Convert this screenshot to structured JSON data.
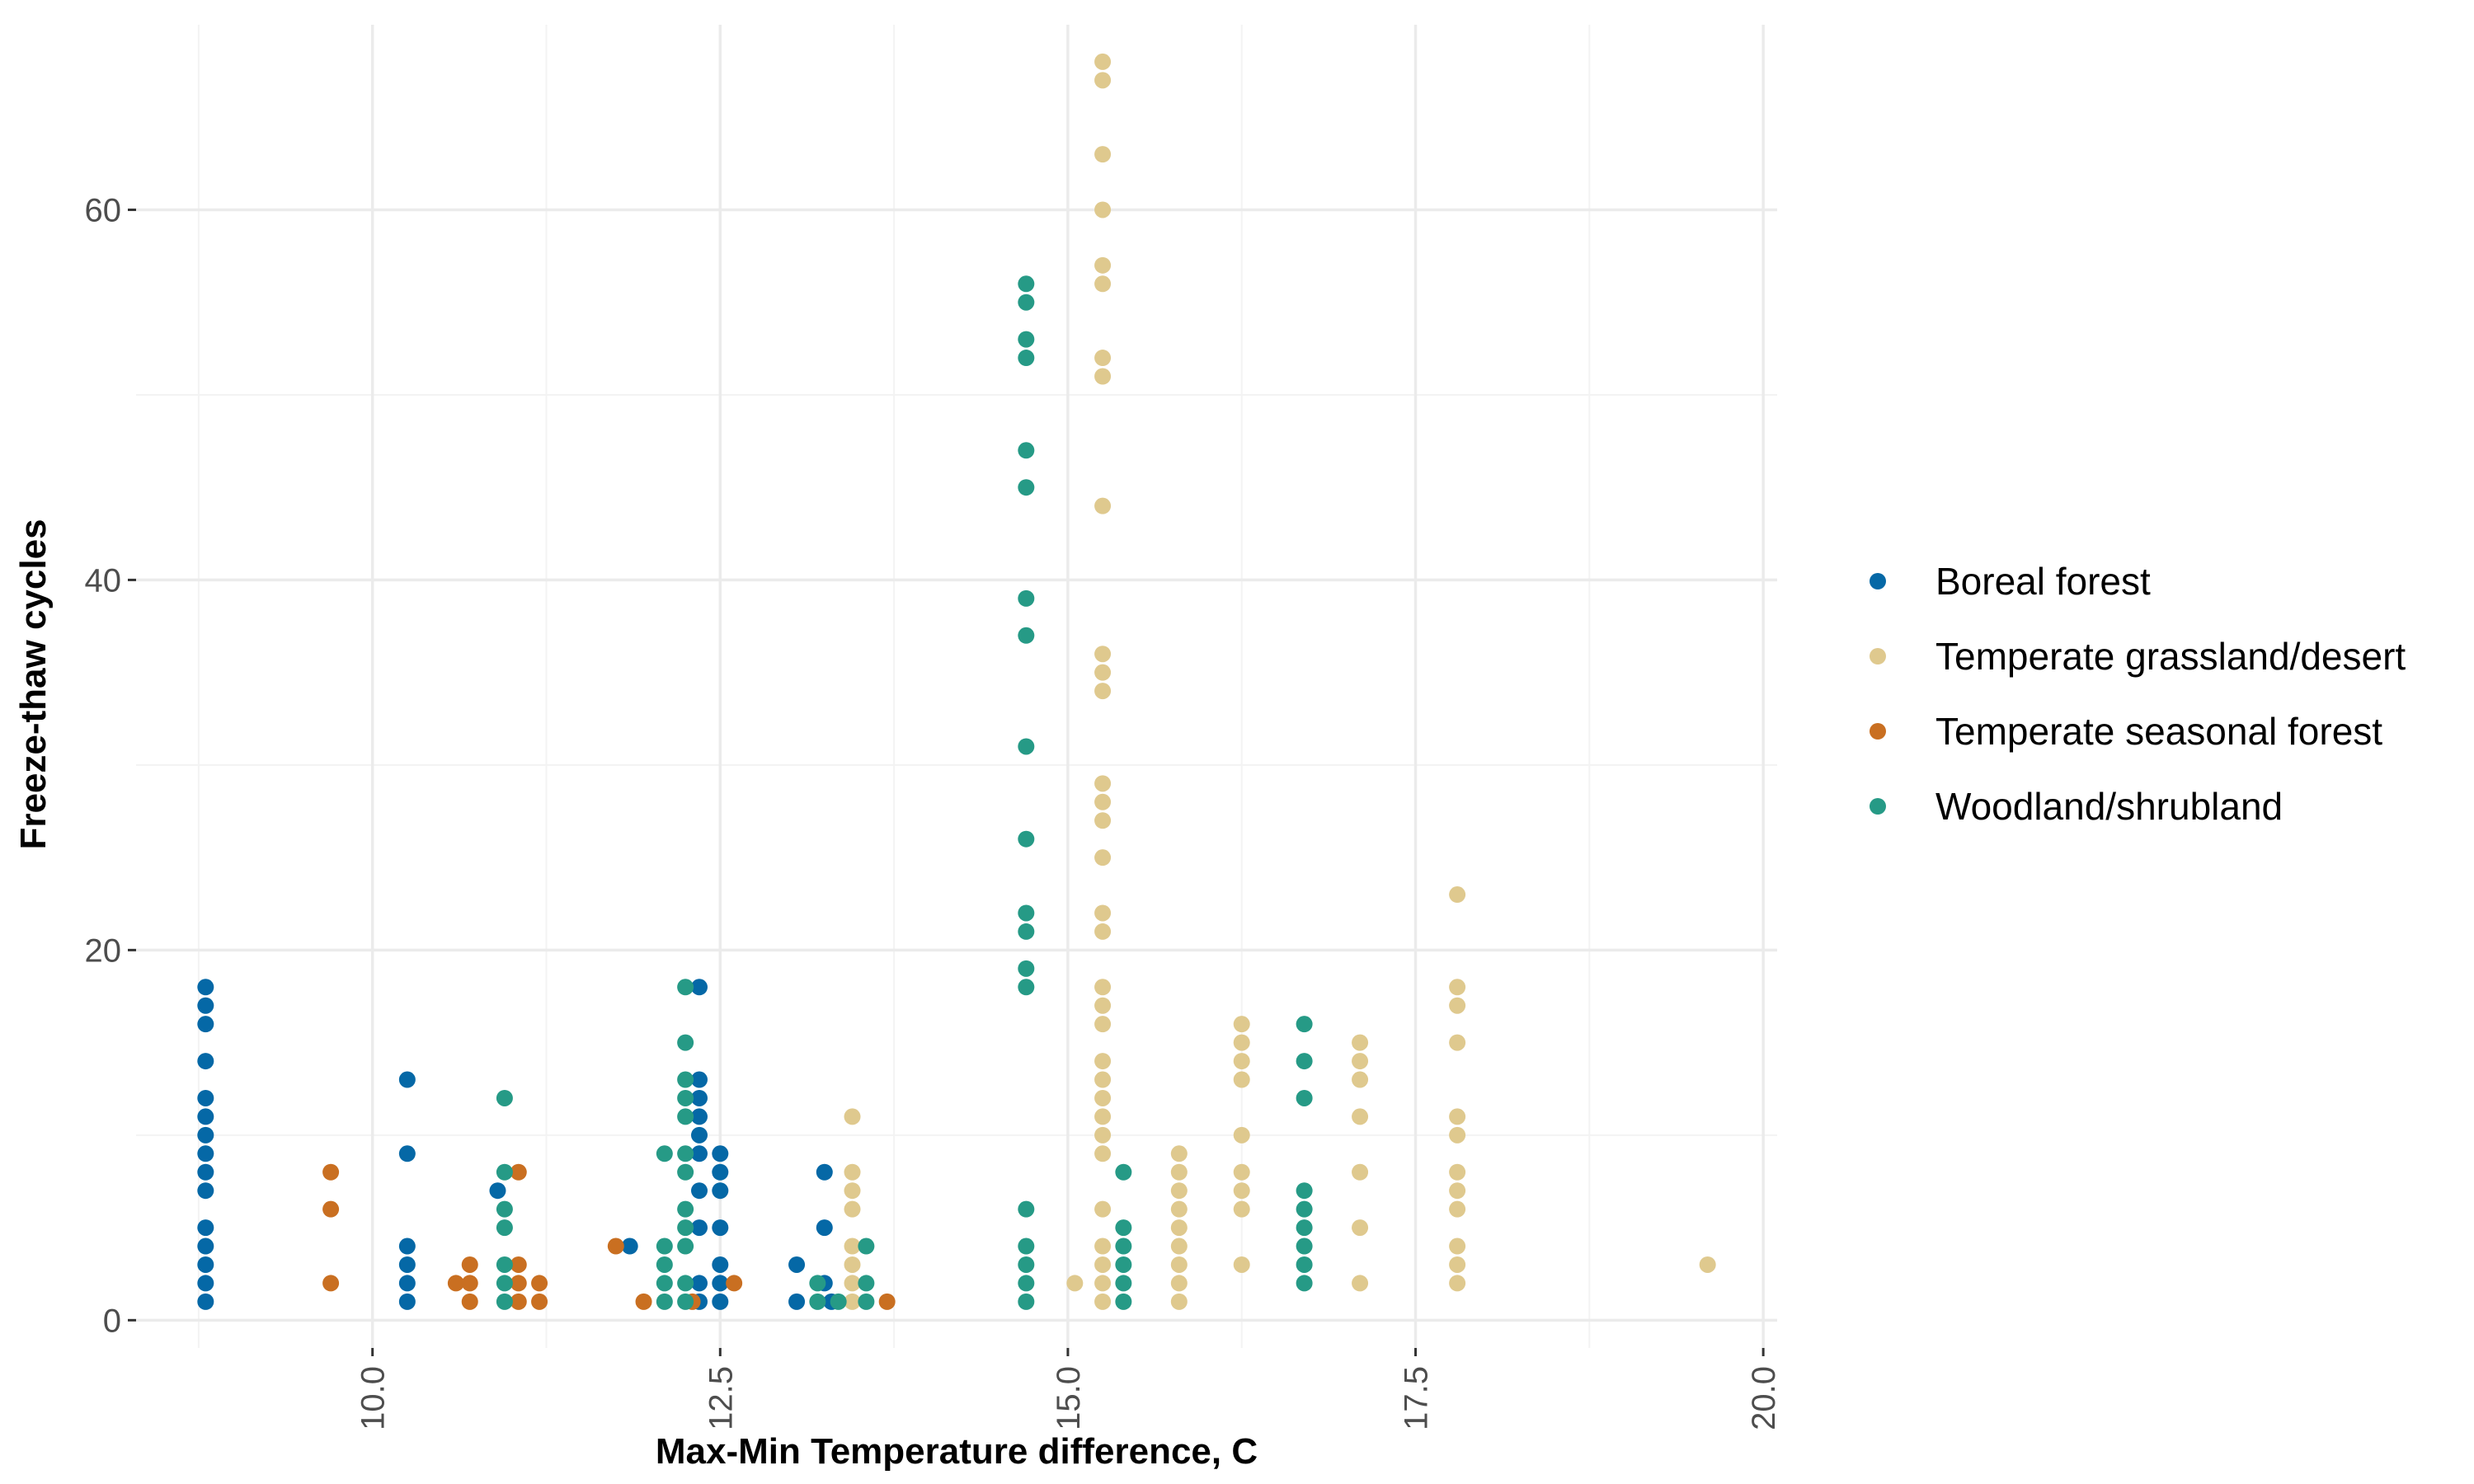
{
  "chart_data": {
    "type": "scatter",
    "xlabel": "Max-Min Temperature difference, C",
    "ylabel": "Freeze-thaw cycles",
    "xlim": [
      8.3,
      20.1
    ],
    "ylim": [
      -1.5,
      70
    ],
    "x_ticks": [
      10.0,
      12.5,
      15.0,
      17.5,
      20.0
    ],
    "x_tick_labels": [
      "10.0",
      "12.5",
      "15.0",
      "17.5",
      "20.0"
    ],
    "x_minor_ticks": [
      8.75,
      11.25,
      13.75,
      16.25,
      18.75
    ],
    "y_ticks": [
      0,
      20,
      40,
      60
    ],
    "y_tick_labels": [
      "0",
      "20",
      "40",
      "60"
    ],
    "y_minor_ticks": [
      10,
      30,
      50
    ],
    "grid": true,
    "legend_position": "right",
    "series": [
      {
        "name": "Boreal forest",
        "color": "#0568a6",
        "points": [
          [
            8.8,
            1
          ],
          [
            8.8,
            2
          ],
          [
            8.8,
            3
          ],
          [
            8.8,
            4
          ],
          [
            8.8,
            5
          ],
          [
            8.8,
            7
          ],
          [
            8.8,
            8
          ],
          [
            8.8,
            9
          ],
          [
            8.8,
            10
          ],
          [
            8.8,
            11
          ],
          [
            8.8,
            12
          ],
          [
            8.8,
            14
          ],
          [
            8.8,
            16
          ],
          [
            8.8,
            17
          ],
          [
            8.8,
            18
          ],
          [
            10.25,
            1
          ],
          [
            10.25,
            2
          ],
          [
            10.25,
            3
          ],
          [
            10.25,
            4
          ],
          [
            10.25,
            9
          ],
          [
            10.25,
            13
          ],
          [
            10.9,
            7
          ],
          [
            11.85,
            4
          ],
          [
            12.35,
            18
          ],
          [
            12.35,
            13
          ],
          [
            12.35,
            12
          ],
          [
            12.35,
            11
          ],
          [
            12.35,
            10
          ],
          [
            12.35,
            9
          ],
          [
            12.35,
            7
          ],
          [
            12.35,
            5
          ],
          [
            12.35,
            2
          ],
          [
            12.35,
            1
          ],
          [
            12.5,
            9
          ],
          [
            12.5,
            8
          ],
          [
            12.5,
            7
          ],
          [
            12.5,
            5
          ],
          [
            12.5,
            3
          ],
          [
            12.5,
            2
          ],
          [
            12.5,
            1
          ],
          [
            13.05,
            1
          ],
          [
            13.05,
            3
          ],
          [
            13.25,
            2
          ],
          [
            13.25,
            5
          ],
          [
            13.25,
            8
          ],
          [
            13.3,
            1
          ]
        ]
      },
      {
        "name": "Temperate grassland/desert",
        "color": "#dfc98e",
        "points": [
          [
            13.45,
            1
          ],
          [
            13.45,
            2
          ],
          [
            13.45,
            3
          ],
          [
            13.45,
            4
          ],
          [
            13.45,
            6
          ],
          [
            13.45,
            7
          ],
          [
            13.45,
            8
          ],
          [
            13.45,
            11
          ],
          [
            15.05,
            2
          ],
          [
            15.25,
            1
          ],
          [
            15.25,
            2
          ],
          [
            15.25,
            3
          ],
          [
            15.25,
            4
          ],
          [
            15.25,
            6
          ],
          [
            15.25,
            9
          ],
          [
            15.25,
            10
          ],
          [
            15.25,
            11
          ],
          [
            15.25,
            12
          ],
          [
            15.25,
            13
          ],
          [
            15.25,
            14
          ],
          [
            15.25,
            16
          ],
          [
            15.25,
            17
          ],
          [
            15.25,
            18
          ],
          [
            15.25,
            21
          ],
          [
            15.25,
            22
          ],
          [
            15.25,
            25
          ],
          [
            15.25,
            27
          ],
          [
            15.25,
            28
          ],
          [
            15.25,
            29
          ],
          [
            15.25,
            34
          ],
          [
            15.25,
            35
          ],
          [
            15.25,
            36
          ],
          [
            15.25,
            44
          ],
          [
            15.25,
            51
          ],
          [
            15.25,
            52
          ],
          [
            15.25,
            56
          ],
          [
            15.25,
            57
          ],
          [
            15.25,
            60
          ],
          [
            15.25,
            63
          ],
          [
            15.25,
            67
          ],
          [
            15.25,
            68
          ],
          [
            15.8,
            1
          ],
          [
            15.8,
            2
          ],
          [
            15.8,
            3
          ],
          [
            15.8,
            4
          ],
          [
            15.8,
            5
          ],
          [
            15.8,
            6
          ],
          [
            15.8,
            7
          ],
          [
            15.8,
            8
          ],
          [
            15.8,
            9
          ],
          [
            16.25,
            3
          ],
          [
            16.25,
            6
          ],
          [
            16.25,
            7
          ],
          [
            16.25,
            8
          ],
          [
            16.25,
            10
          ],
          [
            16.25,
            13
          ],
          [
            16.25,
            14
          ],
          [
            16.25,
            15
          ],
          [
            16.25,
            16
          ],
          [
            17.1,
            2
          ],
          [
            17.1,
            5
          ],
          [
            17.1,
            8
          ],
          [
            17.1,
            11
          ],
          [
            17.1,
            13
          ],
          [
            17.1,
            14
          ],
          [
            17.1,
            15
          ],
          [
            17.8,
            2
          ],
          [
            17.8,
            3
          ],
          [
            17.8,
            4
          ],
          [
            17.8,
            6
          ],
          [
            17.8,
            7
          ],
          [
            17.8,
            8
          ],
          [
            17.8,
            10
          ],
          [
            17.8,
            11
          ],
          [
            17.8,
            15
          ],
          [
            17.8,
            17
          ],
          [
            17.8,
            18
          ],
          [
            17.8,
            23
          ],
          [
            19.6,
            3
          ]
        ]
      },
      {
        "name": "Temperate seasonal forest",
        "color": "#c96f21",
        "points": [
          [
            9.7,
            2
          ],
          [
            9.7,
            6
          ],
          [
            9.7,
            8
          ],
          [
            10.6,
            2
          ],
          [
            10.7,
            1
          ],
          [
            10.7,
            2
          ],
          [
            10.7,
            3
          ],
          [
            11.05,
            1
          ],
          [
            11.05,
            2
          ],
          [
            11.05,
            3
          ],
          [
            11.05,
            8
          ],
          [
            11.2,
            1
          ],
          [
            11.2,
            2
          ],
          [
            11.75,
            4
          ],
          [
            11.95,
            1
          ],
          [
            12.3,
            1
          ],
          [
            12.6,
            2
          ],
          [
            13.7,
            1
          ]
        ]
      },
      {
        "name": "Woodland/shrubland",
        "color": "#269a86",
        "points": [
          [
            10.95,
            1
          ],
          [
            10.95,
            2
          ],
          [
            10.95,
            3
          ],
          [
            10.95,
            5
          ],
          [
            10.95,
            6
          ],
          [
            10.95,
            8
          ],
          [
            10.95,
            12
          ],
          [
            12.1,
            1
          ],
          [
            12.1,
            2
          ],
          [
            12.1,
            3
          ],
          [
            12.1,
            4
          ],
          [
            12.1,
            9
          ],
          [
            12.25,
            1
          ],
          [
            12.25,
            2
          ],
          [
            12.25,
            4
          ],
          [
            12.25,
            5
          ],
          [
            12.25,
            6
          ],
          [
            12.25,
            8
          ],
          [
            12.25,
            9
          ],
          [
            12.25,
            11
          ],
          [
            12.25,
            12
          ],
          [
            12.25,
            13
          ],
          [
            12.25,
            15
          ],
          [
            12.25,
            18
          ],
          [
            13.2,
            1
          ],
          [
            13.2,
            2
          ],
          [
            13.35,
            1
          ],
          [
            13.55,
            1
          ],
          [
            13.55,
            2
          ],
          [
            13.55,
            4
          ],
          [
            14.7,
            1
          ],
          [
            14.7,
            2
          ],
          [
            14.7,
            3
          ],
          [
            14.7,
            4
          ],
          [
            14.7,
            6
          ],
          [
            14.7,
            18
          ],
          [
            14.7,
            19
          ],
          [
            14.7,
            21
          ],
          [
            14.7,
            22
          ],
          [
            14.7,
            26
          ],
          [
            14.7,
            31
          ],
          [
            14.7,
            37
          ],
          [
            14.7,
            39
          ],
          [
            14.7,
            45
          ],
          [
            14.7,
            47
          ],
          [
            14.7,
            52
          ],
          [
            14.7,
            53
          ],
          [
            14.7,
            55
          ],
          [
            14.7,
            56
          ],
          [
            15.4,
            1
          ],
          [
            15.4,
            2
          ],
          [
            15.4,
            3
          ],
          [
            15.4,
            4
          ],
          [
            15.4,
            5
          ],
          [
            15.4,
            8
          ],
          [
            16.7,
            2
          ],
          [
            16.7,
            3
          ],
          [
            16.7,
            4
          ],
          [
            16.7,
            5
          ],
          [
            16.7,
            6
          ],
          [
            16.7,
            7
          ],
          [
            16.7,
            12
          ],
          [
            16.7,
            14
          ],
          [
            16.7,
            16
          ]
        ]
      }
    ]
  }
}
